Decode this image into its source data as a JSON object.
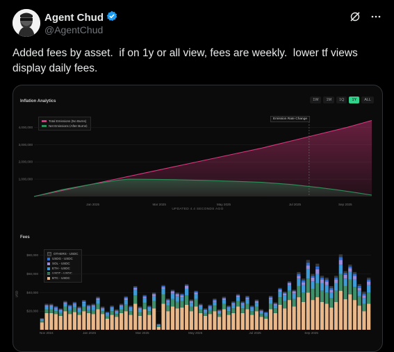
{
  "author": {
    "name": "Agent Chud",
    "handle": "@AgentChud"
  },
  "post": {
    "text": "Added fees by asset.  if on 1y or all view, fees are weekly.  lower tf views display daily fees."
  },
  "icons": {
    "verified": "verified-badge-icon",
    "grok": "grok-icon",
    "more": "more-icon"
  },
  "colors": {
    "verified": "#1d9bf0",
    "total_emissions": "#d9387f",
    "net_emissions": "#2f8f5b",
    "active_tf": "#2fd18b"
  },
  "inflation_panel": {
    "title": "Inflation Analytics",
    "timeframes": [
      "1W",
      "1M",
      "1Q",
      "1Y",
      "ALL"
    ],
    "active_timeframe": "1Y",
    "legend": [
      "Total Emissions (No Burns)",
      "Net Emissions (After Burns)"
    ],
    "annotation": "Emission Rate Change",
    "updated": "UPDATED 4.4 SECONDS AGO"
  },
  "fees_panel": {
    "title": "Fees",
    "ylabel": "USD",
    "legend": [
      "OTHERS - USDC",
      "USDG - USDC",
      "SOL - USDC",
      "ETH - USDC",
      "USDT - USDC",
      "BTC - USDC"
    ]
  },
  "chart_data": [
    {
      "type": "area",
      "title": "Inflation Analytics",
      "y_ticks": [
        "1,000,000",
        "2,000,000",
        "3,000,000",
        "4,000,000"
      ],
      "x_ticks": [
        "Jan 2025",
        "Mar 2025",
        "May 2025",
        "Jul 2025",
        "Sep 2025"
      ],
      "ylim": [
        0,
        4500000
      ],
      "series": [
        {
          "name": "Total Emissions (No Burns)",
          "x": [
            0,
            30,
            60,
            90,
            120,
            150,
            180,
            210,
            240,
            270,
            300,
            330,
            356
          ],
          "values": [
            0,
            350000,
            700000,
            1050000,
            1400000,
            1750000,
            2100000,
            2450000,
            2800000,
            3200000,
            3600000,
            4000000,
            4400000
          ]
        },
        {
          "name": "Net Emissions (After Burns)",
          "x": [
            0,
            30,
            60,
            90,
            100,
            120,
            150,
            180,
            210,
            240,
            270,
            300,
            320,
            340,
            356
          ],
          "values": [
            0,
            400000,
            700000,
            950000,
            1000000,
            990000,
            970000,
            930000,
            880000,
            820000,
            700000,
            520000,
            380000,
            220000,
            80000
          ]
        }
      ]
    },
    {
      "type": "bar",
      "title": "Fees",
      "ylabel": "USD",
      "y_ticks": [
        "$20,000",
        "$40,000",
        "$60,000",
        "$80,000"
      ],
      "x_ticks": [
        "Nov 2024",
        "Jan 2025",
        "Mar 2025",
        "May 2025",
        "Jul 2025",
        "Sep 2025"
      ],
      "ylim": [
        0,
        85000
      ],
      "series_names": [
        "BTC - USDC",
        "USDT - USDC",
        "ETH - USDC",
        "SOL - USDC",
        "USDG - USDC",
        "OTHERS - USDC"
      ],
      "bars": [
        [
          8000,
          1500,
          1500,
          500,
          500,
          500
        ],
        [
          18000,
          4000,
          3000,
          1000,
          1000,
          1000
        ],
        [
          18000,
          4000,
          3000,
          1000,
          1000,
          1000
        ],
        [
          17000,
          3000,
          2500,
          1000,
          1000,
          1000
        ],
        [
          15000,
          3000,
          2500,
          800,
          800,
          800
        ],
        [
          20000,
          5000,
          3000,
          1000,
          1000,
          1000
        ],
        [
          17000,
          4000,
          3000,
          1000,
          1000,
          1000
        ],
        [
          19000,
          5000,
          3000,
          1000,
          1000,
          1000
        ],
        [
          16000,
          3000,
          3000,
          1000,
          1000,
          1000
        ],
        [
          20000,
          5000,
          4000,
          1000,
          1000,
          1000
        ],
        [
          18000,
          3000,
          3000,
          1000,
          1000,
          1000
        ],
        [
          17000,
          4000,
          4000,
          1000,
          1000,
          1000
        ],
        [
          22000,
          6000,
          4000,
          1500,
          1000,
          1000
        ],
        [
          17000,
          3000,
          2000,
          1000,
          1000,
          1000
        ],
        [
          12000,
          3000,
          2000,
          800,
          800,
          800
        ],
        [
          16000,
          4000,
          3000,
          1000,
          1000,
          1000
        ],
        [
          14000,
          3000,
          2000,
          1000,
          1000,
          1000
        ],
        [
          18000,
          4000,
          3000,
          1000,
          1000,
          1000
        ],
        [
          20000,
          7000,
          5000,
          2000,
          1000,
          1000
        ],
        [
          16000,
          4000,
          3000,
          1000,
          1000,
          1000
        ],
        [
          28000,
          9000,
          6000,
          2000,
          1000,
          1000
        ],
        [
          15000,
          4000,
          3000,
          1000,
          1000,
          1000
        ],
        [
          22000,
          7000,
          5000,
          1500,
          1000,
          1000
        ],
        [
          16000,
          4000,
          3000,
          1000,
          1000,
          1000
        ],
        [
          23000,
          8000,
          5000,
          2000,
          1000,
          1000
        ],
        [
          3000,
          1000,
          1000,
          500,
          500,
          500
        ],
        [
          28000,
          10000,
          6000,
          2000,
          1000,
          1000
        ],
        [
          20000,
          6000,
          4000,
          1500,
          1000,
          1000
        ],
        [
          25000,
          8000,
          6000,
          2000,
          1000,
          1000
        ],
        [
          23000,
          7000,
          6000,
          2000,
          1000,
          1000
        ],
        [
          24000,
          7000,
          4000,
          2000,
          1000,
          1000
        ],
        [
          27000,
          10000,
          7000,
          3000,
          1000,
          1000
        ],
        [
          20000,
          5000,
          4000,
          1500,
          1000,
          1000
        ],
        [
          25000,
          8000,
          5000,
          2000,
          1000,
          1000
        ],
        [
          18000,
          4000,
          3000,
          1000,
          1000,
          1000
        ],
        [
          15000,
          3000,
          2000,
          1000,
          1000,
          1000
        ],
        [
          17000,
          4000,
          3000,
          1000,
          1000,
          1000
        ],
        [
          20000,
          6000,
          4000,
          1500,
          1000,
          1000
        ],
        [
          14000,
          3000,
          2000,
          1000,
          1000,
          1000
        ],
        [
          22000,
          6000,
          4000,
          1500,
          1000,
          1000
        ],
        [
          16000,
          4000,
          3000,
          1000,
          1000,
          1000
        ],
        [
          18000,
          5000,
          4000,
          1500,
          1000,
          1000
        ],
        [
          25000,
          6000,
          4000,
          1500,
          1000,
          1000
        ],
        [
          18000,
          5000,
          4000,
          1500,
          1000,
          1000
        ],
        [
          22000,
          6000,
          5000,
          1500,
          1000,
          1000
        ],
        [
          16000,
          4000,
          3000,
          1000,
          1000,
          1000
        ],
        [
          20000,
          5000,
          4000,
          1500,
          1000,
          1000
        ],
        [
          14000,
          3000,
          2000,
          1000,
          1000,
          1000
        ],
        [
          12000,
          3000,
          2000,
          800,
          800,
          800
        ],
        [
          22000,
          6000,
          5000,
          1500,
          1000,
          1000
        ],
        [
          18000,
          5000,
          3000,
          1500,
          1000,
          1000
        ],
        [
          27000,
          8000,
          6000,
          2000,
          1000,
          1000
        ],
        [
          23000,
          8000,
          6000,
          2000,
          1000,
          1000
        ],
        [
          32000,
          10000,
          6000,
          2000,
          1000,
          1000
        ],
        [
          25000,
          8000,
          6000,
          2000,
          1000,
          1000
        ],
        [
          35000,
          12000,
          8000,
          3000,
          2000,
          2000
        ],
        [
          30000,
          10000,
          8000,
          3000,
          2000,
          2000
        ],
        [
          40000,
          15000,
          10000,
          4000,
          3000,
          3000
        ],
        [
          32000,
          12000,
          8000,
          4000,
          2000,
          2000
        ],
        [
          35000,
          15000,
          10000,
          5000,
          3000,
          3000
        ],
        [
          30000,
          12000,
          8000,
          4000,
          2000,
          2000
        ],
        [
          28000,
          12000,
          8000,
          4000,
          2000,
          2000
        ],
        [
          24000,
          10000,
          6000,
          3000,
          2000,
          2000
        ],
        [
          30000,
          12000,
          8000,
          4000,
          2000,
          2000
        ],
        [
          42000,
          18000,
          10000,
          5000,
          3000,
          3000
        ],
        [
          33000,
          14000,
          8000,
          4000,
          2000,
          2000
        ],
        [
          38000,
          16000,
          8000,
          4000,
          2000,
          2000
        ],
        [
          32000,
          14000,
          8000,
          4000,
          2000,
          2000
        ],
        [
          26000,
          10000,
          6000,
          3000,
          2000,
          2000
        ],
        [
          20000,
          8000,
          6000,
          3000,
          2000,
          2000
        ],
        [
          28000,
          12000,
          8000,
          4000,
          2000,
          2000
        ]
      ]
    }
  ]
}
